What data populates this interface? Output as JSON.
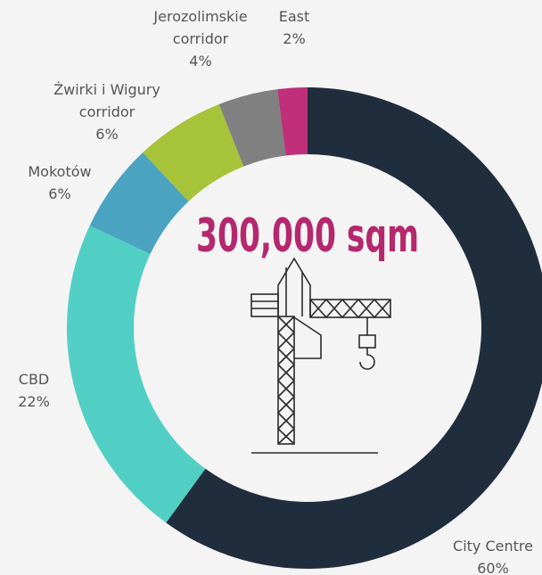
{
  "chart_data": {
    "type": "donut",
    "center_label": "300,000 sqm",
    "categories": [
      "City Centre",
      "CBD",
      "Mokotów",
      "Żwirki i Wigury corridor",
      "Jerozolimskie corridor",
      "East"
    ],
    "values": [
      60,
      22,
      6,
      6,
      4,
      2
    ],
    "value_labels": [
      "60%",
      "22%",
      "6%",
      "6%",
      "4%",
      "2%"
    ],
    "colors": [
      "#1f2d3d",
      "#52cfc4",
      "#4aa3c0",
      "#a6c33a",
      "#808080",
      "#c0307a"
    ]
  }
}
